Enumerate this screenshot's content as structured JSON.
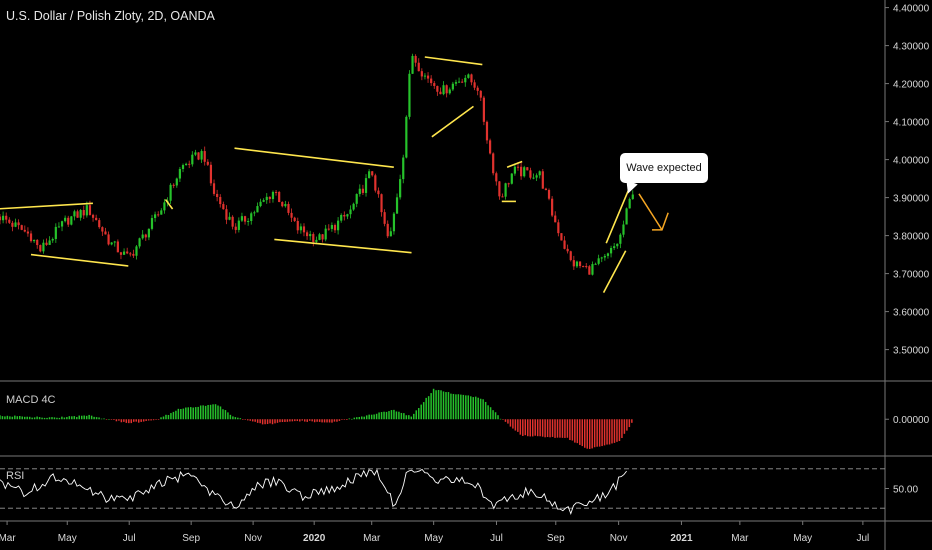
{
  "header": {
    "title": "U.S. Dollar / Polish Zloty, 2D, OANDA"
  },
  "annotation": {
    "text": "Wave expected"
  },
  "colors": {
    "up": "#26c22b",
    "down": "#e0322e",
    "pattern": "#ffe64d",
    "forecast": "#f5a623",
    "rsi": "#ffffff",
    "grid": "#777777"
  },
  "chart_data": [
    {
      "type": "candlestick",
      "title": "U.S. Dollar / Polish Zloty, 2D, OANDA",
      "ylim": [
        3.42,
        4.42
      ],
      "yticks": [
        "4.40000",
        "4.30000",
        "4.20000",
        "4.10000",
        "4.00000",
        "3.90000",
        "3.80000",
        "3.70000",
        "3.60000",
        "3.50000"
      ],
      "ytick_values": [
        4.4,
        4.3,
        4.2,
        4.1,
        4.0,
        3.9,
        3.8,
        3.7,
        3.6,
        3.5
      ],
      "price_path": [
        {
          "t": 0,
          "v": 3.85
        },
        {
          "t": 0.035,
          "v": 3.8
        },
        {
          "t": 0.045,
          "v": 3.76
        },
        {
          "t": 0.075,
          "v": 3.84
        },
        {
          "t": 0.1,
          "v": 3.87
        },
        {
          "t": 0.125,
          "v": 3.78
        },
        {
          "t": 0.145,
          "v": 3.74
        },
        {
          "t": 0.18,
          "v": 3.86
        },
        {
          "t": 0.205,
          "v": 3.98
        },
        {
          "t": 0.23,
          "v": 4.02
        },
        {
          "t": 0.24,
          "v": 3.92
        },
        {
          "t": 0.265,
          "v": 3.82
        },
        {
          "t": 0.29,
          "v": 3.87
        },
        {
          "t": 0.31,
          "v": 3.92
        },
        {
          "t": 0.335,
          "v": 3.82
        },
        {
          "t": 0.36,
          "v": 3.79
        },
        {
          "t": 0.395,
          "v": 3.86
        },
        {
          "t": 0.42,
          "v": 3.97
        },
        {
          "t": 0.435,
          "v": 3.82
        },
        {
          "t": 0.44,
          "v": 3.78
        },
        {
          "t": 0.455,
          "v": 4.0
        },
        {
          "t": 0.465,
          "v": 4.28
        },
        {
          "t": 0.48,
          "v": 4.22
        },
        {
          "t": 0.5,
          "v": 4.18
        },
        {
          "t": 0.525,
          "v": 4.22
        },
        {
          "t": 0.54,
          "v": 4.19
        },
        {
          "t": 0.555,
          "v": 4.0
        },
        {
          "t": 0.565,
          "v": 3.9
        },
        {
          "t": 0.58,
          "v": 3.97
        },
        {
          "t": 0.61,
          "v": 3.96
        },
        {
          "t": 0.625,
          "v": 3.85
        },
        {
          "t": 0.645,
          "v": 3.73
        },
        {
          "t": 0.665,
          "v": 3.71
        },
        {
          "t": 0.685,
          "v": 3.74
        },
        {
          "t": 0.7,
          "v": 3.79
        },
        {
          "t": 0.715,
          "v": 3.92
        }
      ],
      "patterns": [
        [
          [
            -0.005,
            3.87
          ],
          [
            0.105,
            3.885
          ]
        ],
        [
          [
            0.035,
            3.75
          ],
          [
            0.145,
            3.72
          ]
        ],
        [
          [
            0.187,
            3.895
          ],
          [
            0.195,
            3.87
          ]
        ],
        [
          [
            0.265,
            4.03
          ],
          [
            0.445,
            3.98
          ]
        ],
        [
          [
            0.31,
            3.79
          ],
          [
            0.465,
            3.755
          ]
        ],
        [
          [
            0.48,
            4.27
          ],
          [
            0.545,
            4.25
          ]
        ],
        [
          [
            0.488,
            4.06
          ],
          [
            0.535,
            4.14
          ]
        ],
        [
          [
            0.573,
            3.98
          ],
          [
            0.59,
            3.995
          ]
        ],
        [
          [
            0.567,
            3.89
          ],
          [
            0.583,
            3.89
          ]
        ],
        [
          [
            0.682,
            3.65
          ],
          [
            0.707,
            3.76
          ]
        ],
        [
          [
            0.685,
            3.78
          ],
          [
            0.712,
            3.93
          ]
        ]
      ],
      "forecast_path": [
        {
          "t": 0.722,
          "v": 3.91
        },
        {
          "t": 0.748,
          "v": 3.815
        },
        {
          "t": 0.755,
          "v": 3.86
        }
      ]
    },
    {
      "type": "bar",
      "name": "MACD 4C",
      "yticks": [
        "0.00000"
      ],
      "ytick_values": [
        0
      ],
      "ylim": [
        -0.048,
        0.05
      ],
      "histogram_path": [
        {
          "t": 0,
          "v": 0.005
        },
        {
          "t": 0.06,
          "v": 0.002
        },
        {
          "t": 0.1,
          "v": 0.005
        },
        {
          "t": 0.145,
          "v": -0.005
        },
        {
          "t": 0.175,
          "v": -0.002
        },
        {
          "t": 0.205,
          "v": 0.015
        },
        {
          "t": 0.245,
          "v": 0.02
        },
        {
          "t": 0.265,
          "v": 0.003
        },
        {
          "t": 0.3,
          "v": -0.007
        },
        {
          "t": 0.335,
          "v": -0.002
        },
        {
          "t": 0.375,
          "v": -0.004
        },
        {
          "t": 0.41,
          "v": 0.004
        },
        {
          "t": 0.445,
          "v": 0.012
        },
        {
          "t": 0.465,
          "v": 0.004
        },
        {
          "t": 0.49,
          "v": 0.04
        },
        {
          "t": 0.515,
          "v": 0.034
        },
        {
          "t": 0.545,
          "v": 0.028
        },
        {
          "t": 0.565,
          "v": 0.002
        },
        {
          "t": 0.59,
          "v": -0.022
        },
        {
          "t": 0.64,
          "v": -0.025
        },
        {
          "t": 0.665,
          "v": -0.04
        },
        {
          "t": 0.7,
          "v": -0.03
        },
        {
          "t": 0.715,
          "v": -0.004
        }
      ]
    },
    {
      "type": "line",
      "name": "RSI",
      "yticks": [
        "50.00"
      ],
      "ytick_values": [
        50
      ],
      "ylim": [
        18,
        82
      ],
      "bands": [
        70,
        30
      ],
      "rsi_path": [
        {
          "t": 0,
          "v": 55
        },
        {
          "t": 0.03,
          "v": 45
        },
        {
          "t": 0.06,
          "v": 62
        },
        {
          "t": 0.09,
          "v": 52
        },
        {
          "t": 0.12,
          "v": 40
        },
        {
          "t": 0.15,
          "v": 42
        },
        {
          "t": 0.19,
          "v": 60
        },
        {
          "t": 0.22,
          "v": 64
        },
        {
          "t": 0.24,
          "v": 45
        },
        {
          "t": 0.265,
          "v": 32
        },
        {
          "t": 0.29,
          "v": 52
        },
        {
          "t": 0.31,
          "v": 58
        },
        {
          "t": 0.34,
          "v": 42
        },
        {
          "t": 0.37,
          "v": 48
        },
        {
          "t": 0.4,
          "v": 60
        },
        {
          "t": 0.425,
          "v": 68
        },
        {
          "t": 0.445,
          "v": 35
        },
        {
          "t": 0.465,
          "v": 73
        },
        {
          "t": 0.485,
          "v": 60
        },
        {
          "t": 0.51,
          "v": 57
        },
        {
          "t": 0.535,
          "v": 58
        },
        {
          "t": 0.555,
          "v": 32
        },
        {
          "t": 0.57,
          "v": 40
        },
        {
          "t": 0.6,
          "v": 48
        },
        {
          "t": 0.625,
          "v": 36
        },
        {
          "t": 0.645,
          "v": 28
        },
        {
          "t": 0.67,
          "v": 38
        },
        {
          "t": 0.69,
          "v": 47
        },
        {
          "t": 0.71,
          "v": 70
        }
      ]
    }
  ],
  "x_axis": {
    "labels": [
      {
        "text": "Mar",
        "t": 0.008
      },
      {
        "text": "May",
        "t": 0.076
      },
      {
        "text": "Jul",
        "t": 0.146
      },
      {
        "text": "Sep",
        "t": 0.216
      },
      {
        "text": "Nov",
        "t": 0.286
      },
      {
        "text": "2020",
        "t": 0.355
      },
      {
        "text": "Mar",
        "t": 0.42
      },
      {
        "text": "May",
        "t": 0.49
      },
      {
        "text": "Jul",
        "t": 0.561
      },
      {
        "text": "Sep",
        "t": 0.628
      },
      {
        "text": "Nov",
        "t": 0.699
      },
      {
        "text": "2021",
        "t": 0.77
      },
      {
        "text": "Mar",
        "t": 0.836
      },
      {
        "text": "May",
        "t": 0.907
      },
      {
        "text": "Jul",
        "t": 0.975
      }
    ]
  }
}
